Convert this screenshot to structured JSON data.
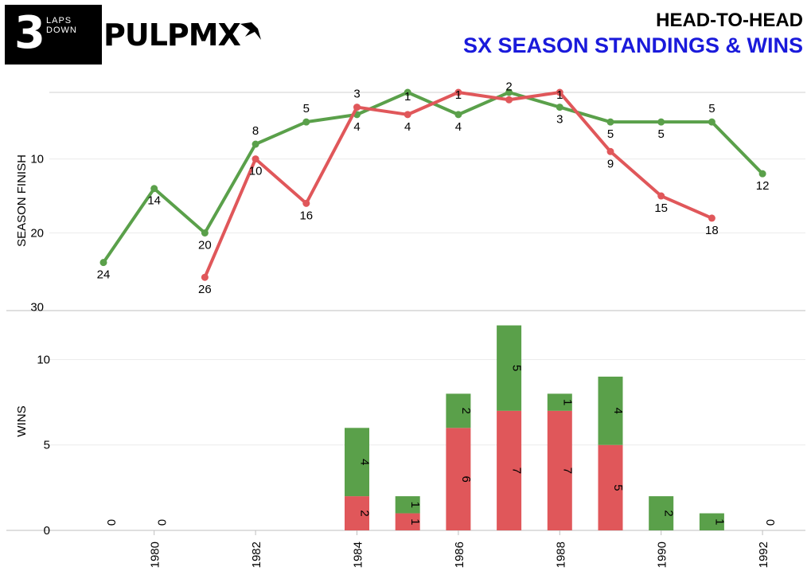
{
  "header": {
    "logo_number": "3",
    "logo_line1": "LAPS",
    "logo_line2": "DOWN",
    "brand": "PULPMX",
    "title": "HEAD-TO-HEAD",
    "subtitle": "SX SEASON STANDINGS & WINS"
  },
  "colors": {
    "red": "#e0575a",
    "green": "#5aa04a",
    "subtitle": "#1a1adb"
  },
  "chart_data": [
    {
      "type": "line",
      "ylabel": "SEASON FINISH",
      "ylim": [
        30,
        1
      ],
      "y_inverted": true,
      "yticks": [
        10,
        20,
        30
      ],
      "series": [
        {
          "color": "green",
          "points": [
            [
              1979,
              24
            ],
            [
              1980,
              14
            ],
            [
              1981,
              20
            ],
            [
              1982,
              8
            ],
            [
              1983,
              5
            ],
            [
              1984,
              4
            ],
            [
              1985,
              1
            ],
            [
              1986,
              4
            ],
            [
              1987,
              1
            ],
            [
              1988,
              3
            ],
            [
              1989,
              5
            ],
            [
              1990,
              5
            ],
            [
              1991,
              5
            ],
            [
              1992,
              12
            ]
          ],
          "labels": [
            "24",
            "14",
            "20",
            "8",
            "5",
            "4",
            "1",
            "4",
            "",
            "3",
            "5",
            "5",
            "5",
            "12"
          ]
        },
        {
          "color": "red",
          "points": [
            [
              1981,
              26
            ],
            [
              1982,
              10
            ],
            [
              1983,
              16
            ],
            [
              1984,
              3
            ],
            [
              1985,
              4
            ],
            [
              1986,
              1
            ],
            [
              1987,
              2
            ],
            [
              1988,
              1
            ],
            [
              1989,
              9
            ],
            [
              1990,
              15
            ],
            [
              1991,
              18
            ]
          ],
          "labels": [
            "26",
            "10",
            "16",
            "3",
            "4",
            "1",
            "2",
            "1",
            "9",
            "15",
            "18"
          ]
        }
      ]
    },
    {
      "type": "bar",
      "stacked": true,
      "ylabel": "WINS",
      "ylim": [
        0,
        13
      ],
      "yticks": [
        0,
        5,
        10
      ],
      "xticks": [
        "1980",
        "1982",
        "1984",
        "1986",
        "1988",
        "1990",
        "1992"
      ],
      "x": [
        1979,
        1980,
        1984,
        1985,
        1986,
        1987,
        1988,
        1989,
        1990,
        1991,
        1992
      ],
      "series": [
        {
          "color": "red",
          "values": [
            0,
            0,
            2,
            1,
            6,
            7,
            7,
            5,
            0,
            0,
            0
          ]
        },
        {
          "color": "green",
          "values": [
            0,
            0,
            4,
            1,
            2,
            5,
            1,
            4,
            2,
            1,
            0
          ]
        }
      ],
      "zero_labels": [
        1979,
        1980,
        1992
      ]
    }
  ]
}
